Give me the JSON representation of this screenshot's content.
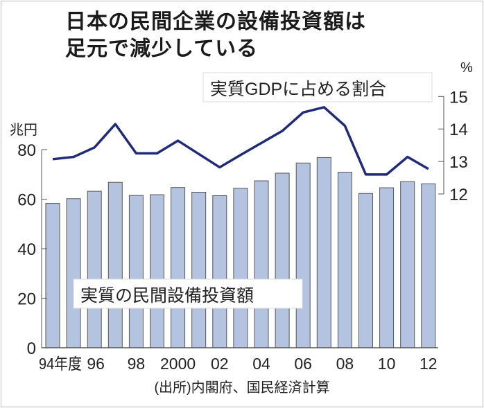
{
  "title": [
    "日本の民間企業の設備投資額は",
    "足元で減少している"
  ],
  "source": "(出所)内閣府、国民経済計算",
  "chart_data": {
    "type": "bar+line",
    "title": "日本の民間企業の設備投資額は足元で減少している",
    "categories": [
      "1994",
      "1995",
      "1996",
      "1997",
      "1998",
      "1999",
      "2000",
      "2001",
      "2002",
      "2003",
      "2004",
      "2005",
      "2006",
      "2007",
      "2008",
      "2009",
      "2010",
      "2011",
      "2012"
    ],
    "x_tick_labels": [
      {
        "index": 0,
        "label": "94年度"
      },
      {
        "index": 2,
        "label": "96"
      },
      {
        "index": 4,
        "label": "98"
      },
      {
        "index": 6,
        "label": "2000"
      },
      {
        "index": 8,
        "label": "02"
      },
      {
        "index": 10,
        "label": "04"
      },
      {
        "index": 12,
        "label": "06"
      },
      {
        "index": 14,
        "label": "08"
      },
      {
        "index": 16,
        "label": "10"
      },
      {
        "index": 18,
        "label": "12"
      }
    ],
    "series": [
      {
        "name": "実質の民間設備投資額",
        "type": "bar",
        "axis": "left",
        "color": "#b4c3e0",
        "values": [
          58.3,
          60.2,
          63.2,
          66.8,
          61.5,
          61.8,
          64.7,
          62.8,
          61.4,
          64.4,
          67.4,
          70.5,
          74.6,
          76.8,
          70.9,
          62.3,
          64.6,
          67.1,
          66.2
        ]
      },
      {
        "name": "実質GDPに占める割合",
        "type": "line",
        "axis": "right",
        "color": "#1f2a78",
        "values": [
          13.07,
          13.14,
          13.43,
          14.15,
          13.25,
          13.25,
          13.64,
          13.23,
          12.82,
          13.2,
          13.57,
          13.94,
          14.51,
          14.67,
          14.1,
          12.6,
          12.6,
          13.14,
          12.77
        ]
      }
    ],
    "left_axis": {
      "label": "兆円",
      "range": [
        0,
        80
      ],
      "ticks": [
        "0",
        "20",
        "40",
        "60",
        "80"
      ]
    },
    "right_axis": {
      "label": "%",
      "range": [
        12,
        15
      ],
      "ticks": [
        "12",
        "13",
        "14",
        "15"
      ]
    },
    "grid": false
  }
}
